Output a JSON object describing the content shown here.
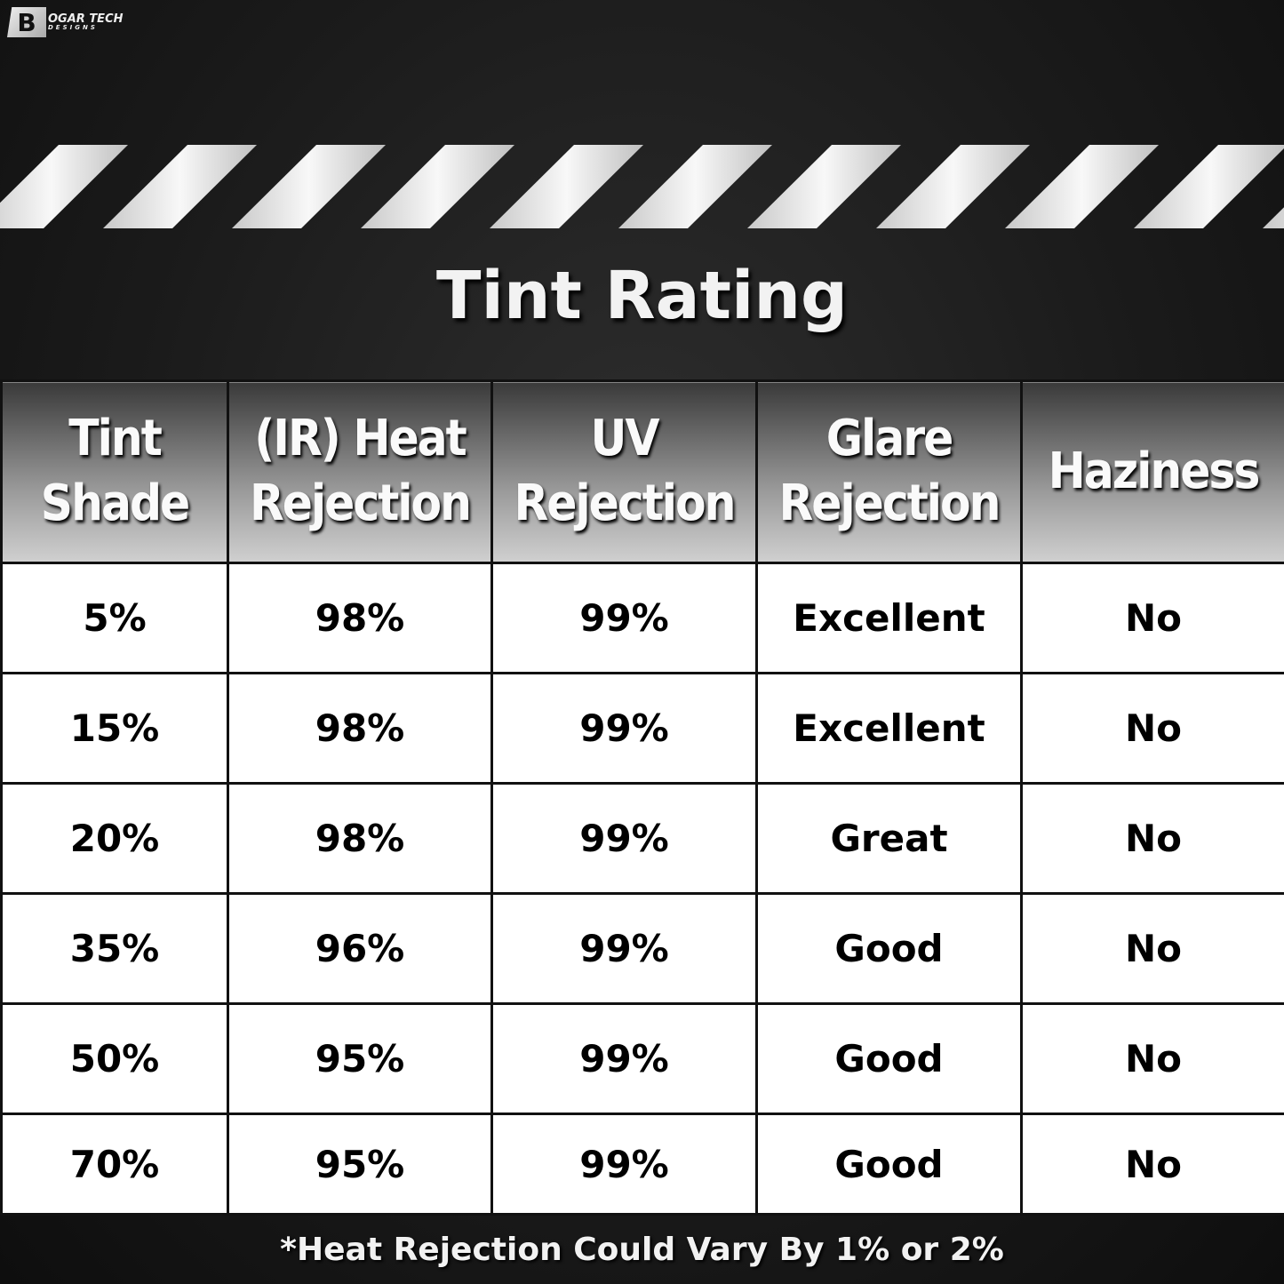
{
  "logo": {
    "line1": "OGAR TECH",
    "line2": "DESIGNS",
    "mark": "B"
  },
  "title": "Tint Rating",
  "table": {
    "headers": [
      "Tint Shade",
      "(IR) Heat Rejection",
      "UV Rejection",
      "Glare Rejection",
      "Haziness"
    ],
    "rows": [
      [
        "5%",
        "98%",
        "99%",
        "Excellent",
        "No"
      ],
      [
        "15%",
        "98%",
        "99%",
        "Excellent",
        "No"
      ],
      [
        "20%",
        "98%",
        "99%",
        "Great",
        "No"
      ],
      [
        "35%",
        "96%",
        "99%",
        "Good",
        "No"
      ],
      [
        "50%",
        "95%",
        "99%",
        "Good",
        "No"
      ],
      [
        "70%",
        "95%",
        "99%",
        "Good",
        "No"
      ]
    ]
  },
  "footnote": "*Heat Rejection Could Vary By 1% or 2%"
}
